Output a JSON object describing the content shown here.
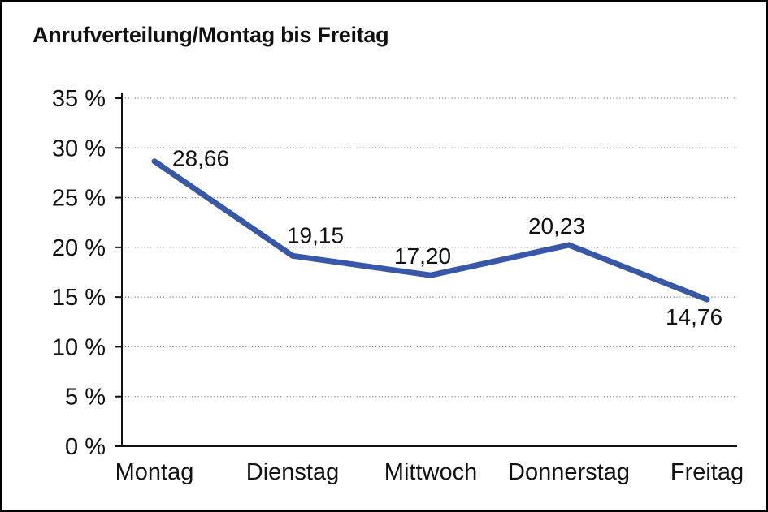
{
  "figure": {
    "title": "Anrufverteilung/Montag bis Freitag"
  },
  "chart_data": {
    "type": "line",
    "title": "Anrufverteilung/Montag bis Freitag",
    "categories": [
      "Montag",
      "Dienstag",
      "Mittwoch",
      "Donnerstag",
      "Freitag"
    ],
    "values": [
      28.66,
      19.15,
      17.2,
      20.23,
      14.76
    ],
    "point_labels": [
      "28,66",
      "19,15",
      "17,20",
      "20,23",
      "14,76"
    ],
    "xlabel": "",
    "ylabel": "",
    "ylim": [
      0,
      35
    ],
    "yticks": [
      0,
      5,
      10,
      15,
      20,
      25,
      30,
      35
    ],
    "ytick_labels": [
      "0 %",
      "5 %",
      "10 %",
      "15 %",
      "20 %",
      "25 %",
      "30 %",
      "35 %"
    ],
    "grid": "horizontal-dotted",
    "legend": "none",
    "colors": {
      "line": "#3857A6",
      "text": "#111111",
      "grid": "#8a8a8a",
      "axis": "#111111",
      "background": "#ffffff",
      "border": "#000000"
    }
  }
}
